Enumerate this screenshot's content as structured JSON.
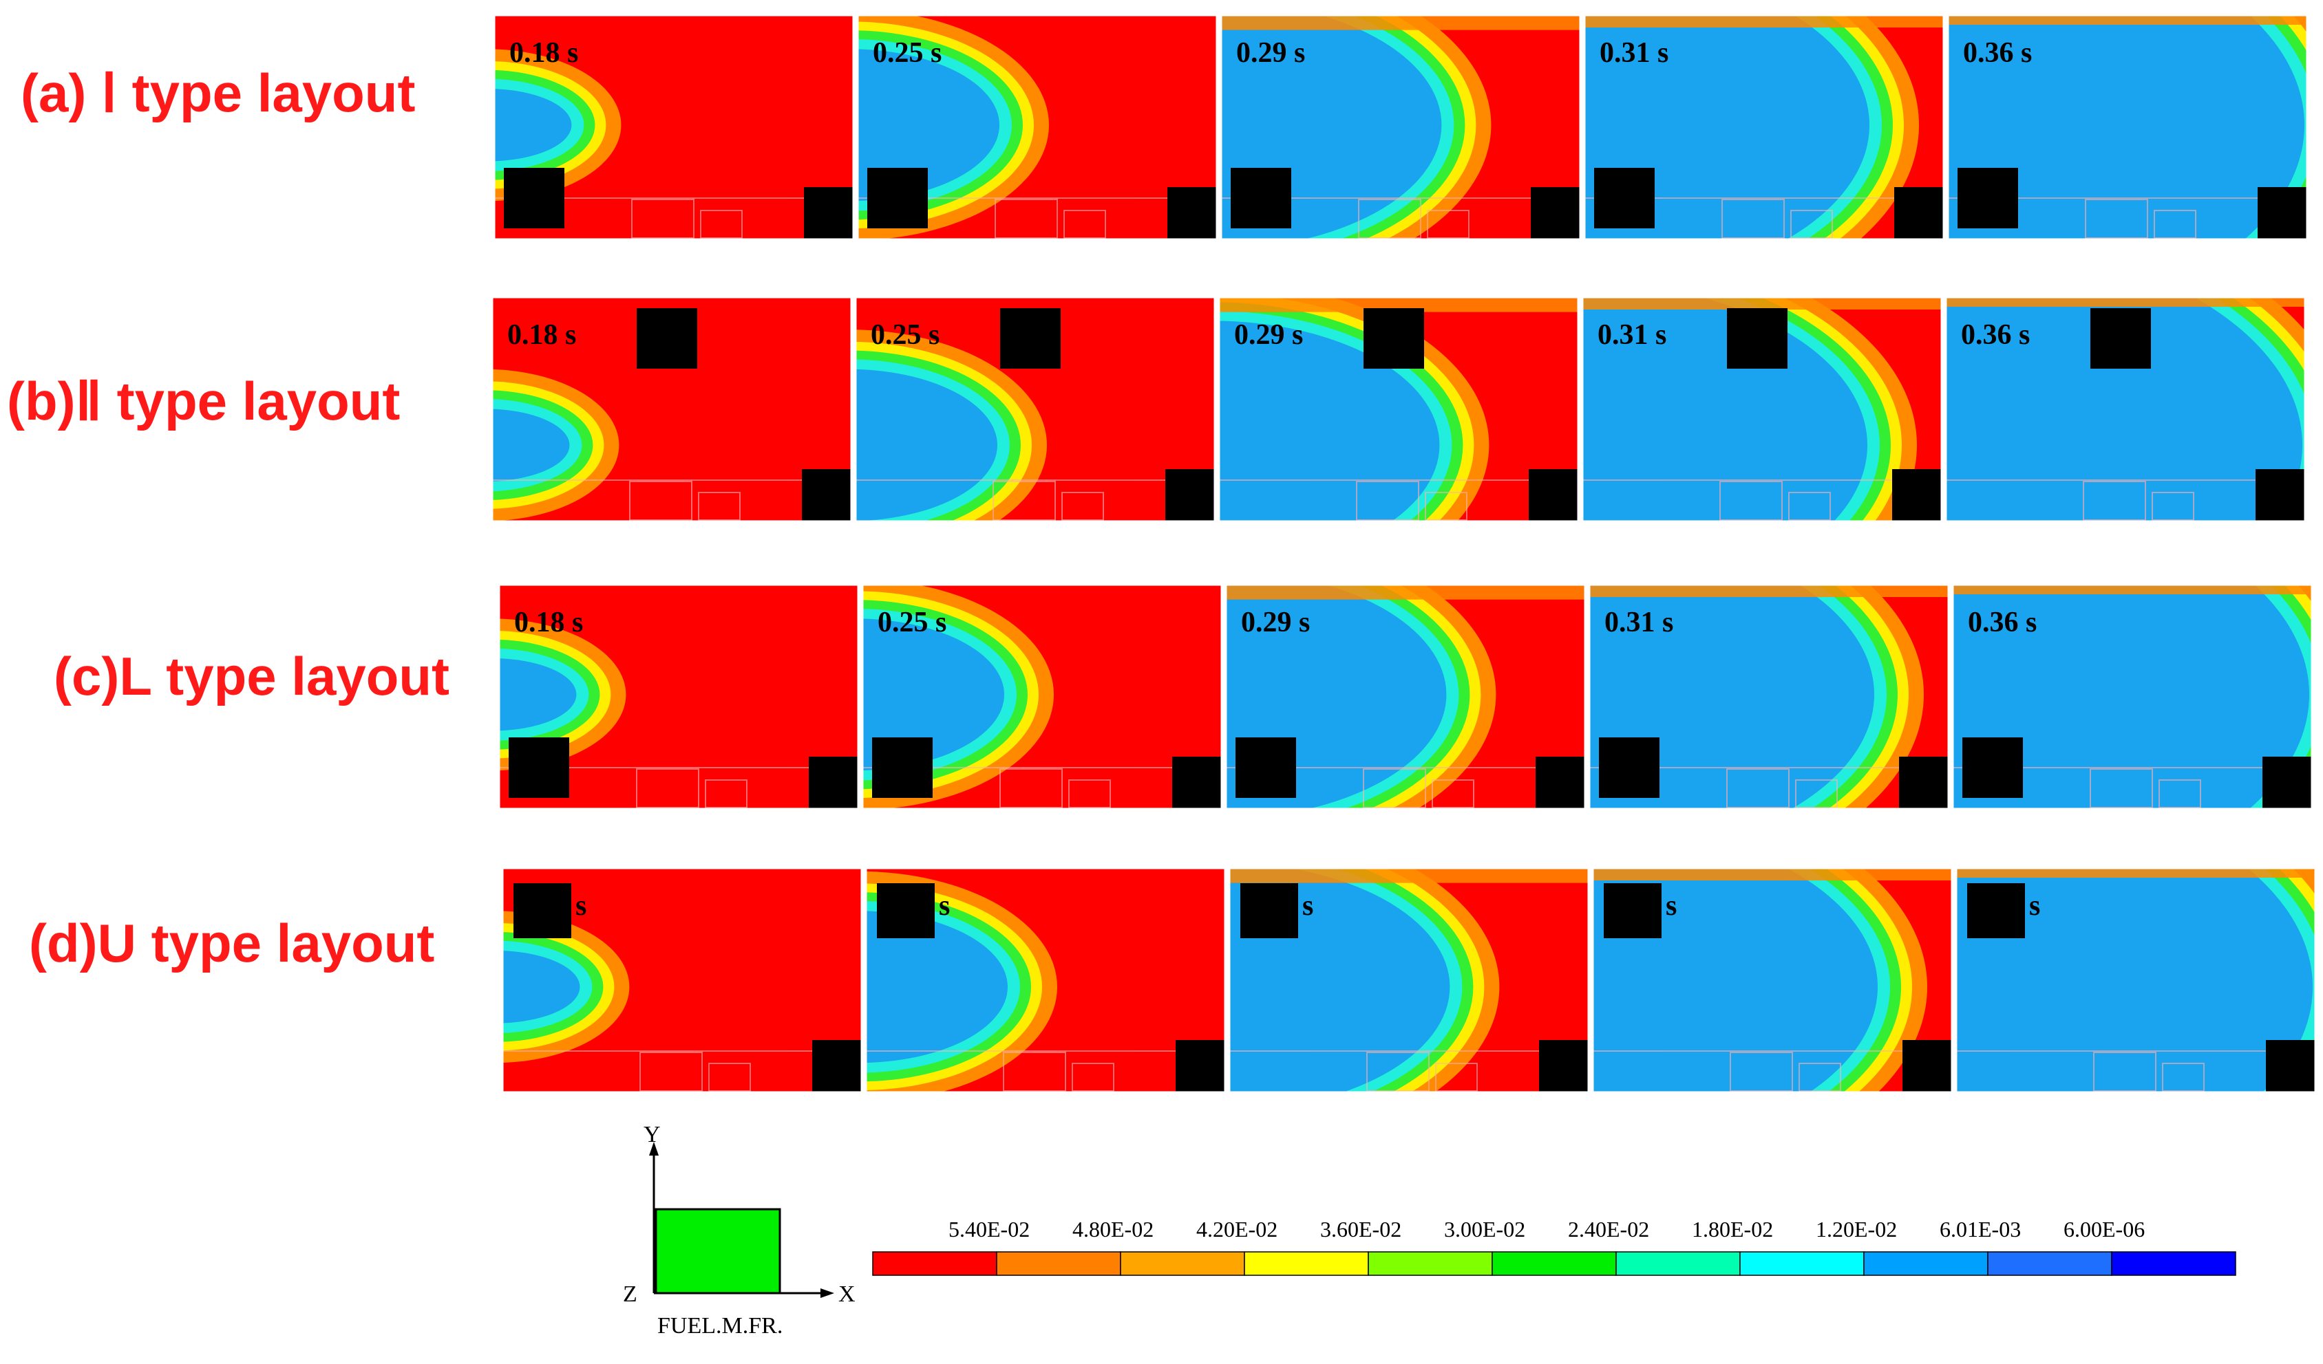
{
  "rows": [
    {
      "label": "(a) Ⅰ type layout",
      "inlet_y_frac": 0.49,
      "obstacle_top": false,
      "top_left_obstacle": false
    },
    {
      "label": "(b)Ⅱ type layout",
      "inlet_y_frac": 0.66,
      "obstacle_top": true,
      "top_left_obstacle": false
    },
    {
      "label": "(c)L type layout",
      "inlet_y_frac": 0.49,
      "obstacle_top": false,
      "top_left_obstacle": false
    },
    {
      "label": "(d)U type layout",
      "inlet_y_frac": 0.53,
      "obstacle_top": false,
      "top_left_obstacle": true
    }
  ],
  "times": [
    "0.18 s",
    "0.25 s",
    "0.29 s",
    "0.31 s",
    "0.36 s"
  ],
  "progress": [
    0.22,
    0.4,
    0.62,
    0.8,
    1.0
  ],
  "axes": {
    "y": "Y",
    "x": "X",
    "z": "Z",
    "variable": "FUEL.M.FR."
  },
  "colorbar": {
    "ticks": [
      "5.40E-02",
      "4.80E-02",
      "4.20E-02",
      "3.60E-02",
      "3.00E-02",
      "2.40E-02",
      "1.80E-02",
      "1.20E-02",
      "6.01E-03",
      "6.00E-06"
    ],
    "colors": [
      "#ff0000",
      "#ff7f00",
      "#ffa500",
      "#ffff00",
      "#80ff00",
      "#00ee00",
      "#00ffb0",
      "#00ffff",
      "#00a0ff",
      "#1f6fff",
      "#0000ff"
    ]
  },
  "palette": {
    "red": "#ff0000",
    "orange": "#ff8a00",
    "yellow": "#ffee00",
    "green": "#33ee33",
    "cyan": "#22eedd",
    "blue": "#1aa3ee",
    "obstacle": "#000000",
    "bbox_green": "#00ee00"
  }
}
